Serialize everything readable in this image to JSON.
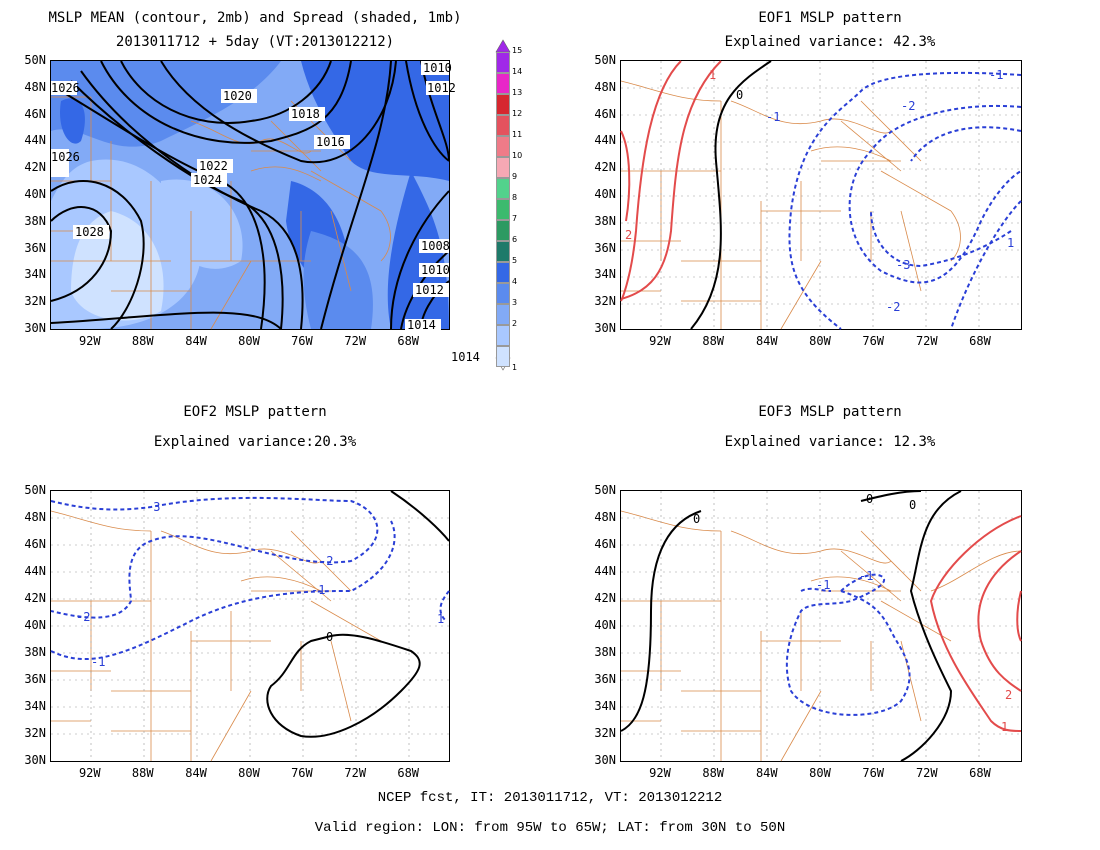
{
  "panel1": {
    "title": "MSLP MEAN (contour, 2mb) and Spread (shaded, 1mb)",
    "subtitle": "2013011712 + 5day (VT:2013012212)",
    "contour_labels": [
      "1020",
      "1018",
      "1016",
      "1022",
      "1024",
      "1028",
      "1026",
      "1026",
      "1014",
      "1012",
      "1010",
      "1008",
      "1010",
      "1012",
      "1014"
    ]
  },
  "panel2": {
    "title": "EOF1 MSLP pattern",
    "subtitle": "Explained variance: 42.3%",
    "contour_labels": [
      "0",
      "-1",
      "-2",
      "-1",
      "-3",
      "-2",
      "1",
      "1",
      "2"
    ]
  },
  "panel3": {
    "title": "EOF2 MSLP pattern",
    "subtitle": "Explained variance:20.3%",
    "contour_labels": [
      "-3",
      "-2",
      "-1",
      "-2",
      "-1",
      "0",
      "1"
    ]
  },
  "panel4": {
    "title": "EOF3 MSLP pattern",
    "subtitle": "Explained variance: 12.3%",
    "contour_labels": [
      "0",
      "0",
      "0",
      "-1",
      "-1",
      "2",
      "1"
    ]
  },
  "y_ticks": [
    "50N",
    "48N",
    "46N",
    "44N",
    "42N",
    "40N",
    "38N",
    "36N",
    "34N",
    "32N",
    "30N"
  ],
  "x_ticks": [
    "92W",
    "88W",
    "84W",
    "80W",
    "76W",
    "72W",
    "68W"
  ],
  "colorbar": {
    "labels": [
      "1",
      "2",
      "3",
      "4",
      "5",
      "6",
      "7",
      "8",
      "9",
      "10",
      "11",
      "12",
      "13",
      "14",
      "15"
    ],
    "colors": [
      "#cfe2ff",
      "#a9c8ff",
      "#82aaf6",
      "#5b8bee",
      "#3468e6",
      "#1e7a6a",
      "#2c9a62",
      "#3cba6e",
      "#52d28c",
      "#f6a8b4",
      "#ef7b88",
      "#e4525e",
      "#d6272f",
      "#e826c8",
      "#a028e8"
    ]
  },
  "footer": {
    "line1": "NCEP fcst, IT: 2013011712, VT: 2013012212",
    "line2": "Valid region: LON: from 95W to 65W; LAT: from 30N to 50N"
  }
}
